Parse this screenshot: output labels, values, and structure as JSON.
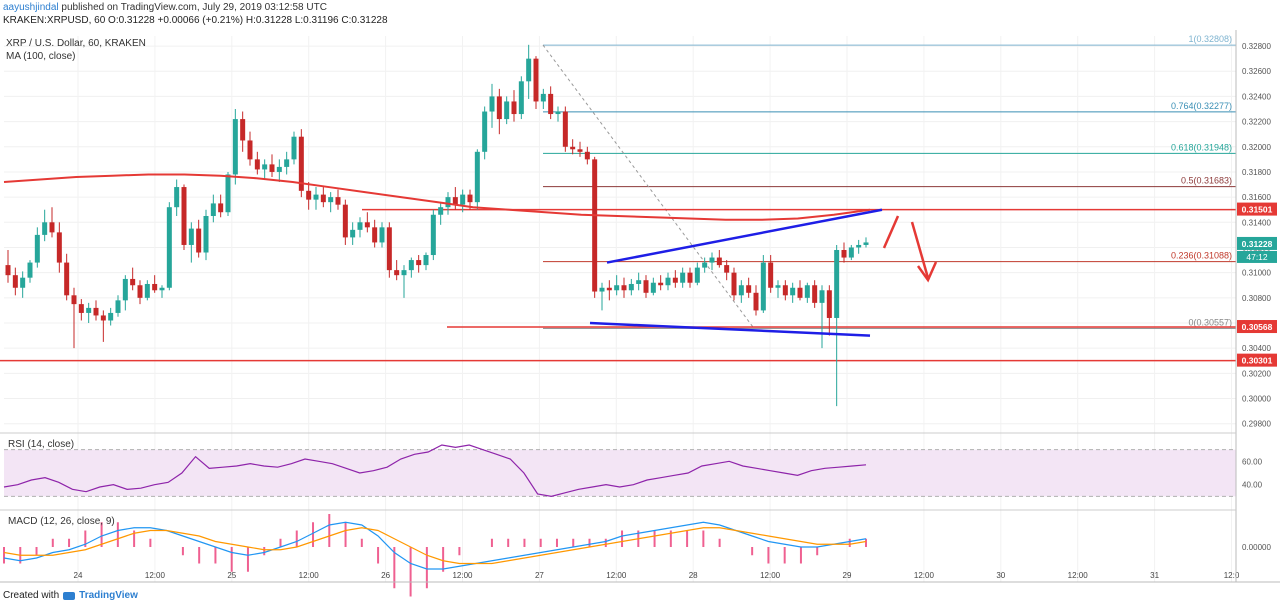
{
  "header": {
    "author": "aayushjindal",
    "published_text": "published on TradingView.com, July 29, 2019 03:12:58 UTC",
    "ohlc_line": "KRAKEN:XRPUSD, 60  O:0.31228  +0.00066 (+0.21%)  H:0.31228  L:0.31196  C:0.31228"
  },
  "chart_data": {
    "type": "candlestick",
    "symbol_title": "XRP / U.S. Dollar, 60, KRAKEN",
    "ma_label": "MA (100, close)",
    "rsi_label": "RSI (14, close)",
    "macd_label": "MACD (12, 26, close, 9)",
    "price_axis": {
      "ylim": [
        0.2975,
        0.3288
      ],
      "ticks": [
        "0.32800",
        "0.32600",
        "0.32400",
        "0.32200",
        "0.32000",
        "0.31800",
        "0.31600",
        "0.31400",
        "0.31200",
        "0.31000",
        "0.30800",
        "0.30600",
        "0.30400",
        "0.30200",
        "0.30000",
        "0.29800"
      ]
    },
    "time_axis": [
      "24",
      "12:00",
      "25",
      "12:00",
      "26",
      "12:00",
      "27",
      "12:00",
      "28",
      "12:00",
      "29",
      "12:00",
      "30",
      "12:00",
      "31",
      "12:0"
    ],
    "price_labels": [
      {
        "value": 0.31501,
        "text": "0.31501",
        "color": "#e53935"
      },
      {
        "value": 0.31228,
        "text": "0.31228",
        "color": "#26a69a"
      },
      {
        "value": 0.30568,
        "text": "0.30568",
        "color": "#e53935"
      },
      {
        "value": 0.30301,
        "text": "0.30301",
        "color": "#e53935"
      }
    ],
    "countdown": "47:12",
    "fib_levels": [
      {
        "ratio": "1",
        "value": 0.32808,
        "text": "1(0.32808)",
        "color": "#7fb4d0"
      },
      {
        "ratio": "0.764",
        "value": 0.32277,
        "text": "0.764(0.32277)",
        "color": "#3a8fb5"
      },
      {
        "ratio": "0.618",
        "value": 0.31948,
        "text": "0.618(0.31948)",
        "color": "#26a69a"
      },
      {
        "ratio": "0.5",
        "value": 0.31683,
        "text": "0.5(0.31683)",
        "color": "#8d3a3a"
      },
      {
        "ratio": "0.236",
        "value": 0.31088,
        "text": "0.236(0.31088)",
        "color": "#c0392b"
      },
      {
        "ratio": "0",
        "value": 0.30557,
        "text": "0(0.30557)",
        "color": "#888888"
      }
    ],
    "horizontal_levels": [
      0.31501,
      0.30568,
      0.30301
    ],
    "trendlines": {
      "upper": [
        [
          0.3108,
          0.315
        ]
      ],
      "lower": [
        [
          0.306,
          0.305
        ]
      ]
    },
    "candles": [
      [
        0.3106,
        0.3118,
        0.3092,
        0.3098
      ],
      [
        0.3098,
        0.3104,
        0.3082,
        0.3088
      ],
      [
        0.3088,
        0.3101,
        0.308,
        0.3096
      ],
      [
        0.3096,
        0.311,
        0.3092,
        0.3108
      ],
      [
        0.3108,
        0.3136,
        0.3104,
        0.313
      ],
      [
        0.313,
        0.315,
        0.3125,
        0.314
      ],
      [
        0.314,
        0.3152,
        0.3128,
        0.3132
      ],
      [
        0.3132,
        0.314,
        0.31,
        0.3108
      ],
      [
        0.3108,
        0.3115,
        0.3078,
        0.3082
      ],
      [
        0.3082,
        0.3088,
        0.304,
        0.3075
      ],
      [
        0.3075,
        0.3079,
        0.3062,
        0.3068
      ],
      [
        0.3068,
        0.3076,
        0.306,
        0.3072
      ],
      [
        0.3072,
        0.3078,
        0.3062,
        0.3066
      ],
      [
        0.3066,
        0.307,
        0.3045,
        0.3062
      ],
      [
        0.3062,
        0.3072,
        0.3058,
        0.3068
      ],
      [
        0.3068,
        0.3082,
        0.3065,
        0.3078
      ],
      [
        0.3078,
        0.3098,
        0.307,
        0.3095
      ],
      [
        0.3095,
        0.3104,
        0.3086,
        0.309
      ],
      [
        0.309,
        0.3094,
        0.3075,
        0.308
      ],
      [
        0.308,
        0.3094,
        0.3078,
        0.3091
      ],
      [
        0.3091,
        0.3098,
        0.3084,
        0.3086
      ],
      [
        0.3086,
        0.309,
        0.308,
        0.3088
      ],
      [
        0.3088,
        0.3156,
        0.3086,
        0.3152
      ],
      [
        0.3152,
        0.3174,
        0.3145,
        0.3168
      ],
      [
        0.3168,
        0.317,
        0.3118,
        0.3122
      ],
      [
        0.3122,
        0.314,
        0.3108,
        0.3135
      ],
      [
        0.3135,
        0.3142,
        0.3112,
        0.3116
      ],
      [
        0.3116,
        0.315,
        0.311,
        0.3145
      ],
      [
        0.3145,
        0.3162,
        0.314,
        0.3155
      ],
      [
        0.3155,
        0.3162,
        0.3144,
        0.3148
      ],
      [
        0.3148,
        0.318,
        0.3145,
        0.3178
      ],
      [
        0.3178,
        0.323,
        0.317,
        0.3222
      ],
      [
        0.3222,
        0.3228,
        0.3196,
        0.3205
      ],
      [
        0.3205,
        0.3212,
        0.3185,
        0.319
      ],
      [
        0.319,
        0.3196,
        0.3178,
        0.3182
      ],
      [
        0.3182,
        0.319,
        0.3174,
        0.3186
      ],
      [
        0.3186,
        0.3194,
        0.3176,
        0.318
      ],
      [
        0.318,
        0.319,
        0.3172,
        0.3184
      ],
      [
        0.3184,
        0.3196,
        0.3178,
        0.319
      ],
      [
        0.319,
        0.3212,
        0.3186,
        0.3208
      ],
      [
        0.3208,
        0.3214,
        0.316,
        0.3165
      ],
      [
        0.3165,
        0.3172,
        0.315,
        0.3158
      ],
      [
        0.3158,
        0.3168,
        0.315,
        0.3162
      ],
      [
        0.3162,
        0.3168,
        0.3152,
        0.3156
      ],
      [
        0.3156,
        0.3164,
        0.3148,
        0.316
      ],
      [
        0.316,
        0.3166,
        0.315,
        0.3154
      ],
      [
        0.3154,
        0.3158,
        0.3122,
        0.3128
      ],
      [
        0.3128,
        0.314,
        0.3122,
        0.3134
      ],
      [
        0.3134,
        0.3144,
        0.3128,
        0.314
      ],
      [
        0.314,
        0.3148,
        0.3132,
        0.3136
      ],
      [
        0.3136,
        0.3142,
        0.312,
        0.3124
      ],
      [
        0.3124,
        0.314,
        0.312,
        0.3136
      ],
      [
        0.3136,
        0.314,
        0.3096,
        0.3102
      ],
      [
        0.3102,
        0.311,
        0.3094,
        0.3098
      ],
      [
        0.3098,
        0.3106,
        0.308,
        0.3102
      ],
      [
        0.3102,
        0.3112,
        0.3096,
        0.311
      ],
      [
        0.311,
        0.3114,
        0.31,
        0.3106
      ],
      [
        0.3106,
        0.3116,
        0.3102,
        0.3114
      ],
      [
        0.3114,
        0.315,
        0.311,
        0.3146
      ],
      [
        0.3146,
        0.3156,
        0.3138,
        0.3152
      ],
      [
        0.3152,
        0.3164,
        0.3146,
        0.316
      ],
      [
        0.316,
        0.3168,
        0.315,
        0.3154
      ],
      [
        0.3154,
        0.3166,
        0.3148,
        0.3162
      ],
      [
        0.3162,
        0.3166,
        0.315,
        0.3156
      ],
      [
        0.3156,
        0.3198,
        0.315,
        0.3196
      ],
      [
        0.3196,
        0.3232,
        0.319,
        0.3228
      ],
      [
        0.3228,
        0.325,
        0.3215,
        0.324
      ],
      [
        0.324,
        0.3246,
        0.321,
        0.3222
      ],
      [
        0.3222,
        0.324,
        0.3218,
        0.3236
      ],
      [
        0.3236,
        0.3245,
        0.322,
        0.3226
      ],
      [
        0.3226,
        0.3256,
        0.3222,
        0.3252
      ],
      [
        0.3252,
        0.3281,
        0.3238,
        0.327
      ],
      [
        0.327,
        0.3272,
        0.323,
        0.3236
      ],
      [
        0.3236,
        0.3246,
        0.323,
        0.3242
      ],
      [
        0.3242,
        0.3248,
        0.3222,
        0.3226
      ],
      [
        0.3226,
        0.3232,
        0.322,
        0.3228
      ],
      [
        0.3228,
        0.3232,
        0.3196,
        0.32
      ],
      [
        0.32,
        0.3206,
        0.3194,
        0.3198
      ],
      [
        0.3198,
        0.3204,
        0.3192,
        0.3196
      ],
      [
        0.3196,
        0.32,
        0.3186,
        0.319
      ],
      [
        0.319,
        0.3192,
        0.308,
        0.3085
      ],
      [
        0.3085,
        0.3092,
        0.307,
        0.3088
      ],
      [
        0.3088,
        0.3094,
        0.3078,
        0.3086
      ],
      [
        0.3086,
        0.3098,
        0.3082,
        0.309
      ],
      [
        0.309,
        0.3096,
        0.308,
        0.3086
      ],
      [
        0.3086,
        0.3095,
        0.3082,
        0.3091
      ],
      [
        0.3091,
        0.31,
        0.3086,
        0.3094
      ],
      [
        0.3094,
        0.3098,
        0.308,
        0.3084
      ],
      [
        0.3084,
        0.3096,
        0.3082,
        0.3092
      ],
      [
        0.3092,
        0.3098,
        0.3086,
        0.309
      ],
      [
        0.309,
        0.31,
        0.3086,
        0.3096
      ],
      [
        0.3096,
        0.3102,
        0.3088,
        0.3092
      ],
      [
        0.3092,
        0.3104,
        0.3088,
        0.31
      ],
      [
        0.31,
        0.3104,
        0.3088,
        0.3092
      ],
      [
        0.3092,
        0.3108,
        0.309,
        0.3104
      ],
      [
        0.3104,
        0.3112,
        0.31,
        0.3108
      ],
      [
        0.3108,
        0.3116,
        0.3102,
        0.3112
      ],
      [
        0.3112,
        0.3118,
        0.3104,
        0.3106
      ],
      [
        0.3106,
        0.311,
        0.3094,
        0.31
      ],
      [
        0.31,
        0.3104,
        0.3078,
        0.3082
      ],
      [
        0.3082,
        0.3094,
        0.3076,
        0.309
      ],
      [
        0.309,
        0.3096,
        0.308,
        0.3084
      ],
      [
        0.3084,
        0.309,
        0.3066,
        0.307
      ],
      [
        0.307,
        0.3114,
        0.3068,
        0.3108
      ],
      [
        0.3108,
        0.3114,
        0.3084,
        0.3088
      ],
      [
        0.3088,
        0.3094,
        0.308,
        0.309
      ],
      [
        0.309,
        0.3094,
        0.3078,
        0.3082
      ],
      [
        0.3082,
        0.3092,
        0.3076,
        0.3088
      ],
      [
        0.3088,
        0.3094,
        0.3078,
        0.308
      ],
      [
        0.308,
        0.3092,
        0.3076,
        0.309
      ],
      [
        0.309,
        0.3094,
        0.3072,
        0.3076
      ],
      [
        0.3076,
        0.309,
        0.304,
        0.3086
      ],
      [
        0.3086,
        0.309,
        0.305,
        0.3064
      ],
      [
        0.3064,
        0.3122,
        0.2994,
        0.3118
      ],
      [
        0.3118,
        0.3124,
        0.3108,
        0.3112
      ],
      [
        0.3112,
        0.3122,
        0.311,
        0.312
      ],
      [
        0.312,
        0.3126,
        0.3115,
        0.3122
      ],
      [
        0.3122,
        0.3128,
        0.312,
        0.3124
      ]
    ],
    "ma": [
      0.3172,
      0.3174,
      0.3176,
      0.3177,
      0.3178,
      0.3178,
      0.3177,
      0.3175,
      0.3172,
      0.3168,
      0.3164,
      0.316,
      0.3156,
      0.3152,
      0.315,
      0.3148,
      0.3146,
      0.3145,
      0.3144,
      0.3143,
      0.3142,
      0.3142,
      0.3143,
      0.3146,
      0.315
    ],
    "rsi": {
      "ylim": [
        20,
        80
      ],
      "levels": [
        30,
        70
      ],
      "ticks": [
        "60.00",
        "40.00"
      ],
      "values": [
        38,
        40,
        44,
        46,
        42,
        36,
        34,
        38,
        40,
        36,
        37,
        40,
        42,
        50,
        64,
        54,
        55,
        56,
        58,
        56,
        55,
        58,
        62,
        60,
        58,
        54,
        50,
        52,
        55,
        62,
        66,
        68,
        74,
        72,
        74,
        70,
        66,
        62,
        50,
        32,
        30,
        33,
        36,
        38,
        40,
        38,
        40,
        44,
        46,
        48,
        50,
        56,
        58,
        60,
        56,
        54,
        52,
        50,
        48,
        52,
        54,
        55,
        56,
        57
      ]
    },
    "macd": {
      "ylim": [
        -0.0012,
        0.0012
      ],
      "ticks": [
        "0.00000"
      ],
      "macd": [
        -0.0004,
        -0.0005,
        -0.0004,
        -0.0002,
        -0.0001,
        0.0001,
        0.0004,
        0.0006,
        0.0007,
        0.0007,
        0.0006,
        0.0004,
        0.0002,
        0.0,
        -0.0002,
        -0.0003,
        -0.0002,
        0.0,
        0.0002,
        0.0005,
        0.0008,
        0.0009,
        0.0008,
        0.0004,
        -0.0002,
        -0.0006,
        -0.0008,
        -0.0008,
        -0.0007,
        -0.0006,
        -0.0005,
        -0.0004,
        -0.0003,
        -0.0002,
        -0.0001,
        0.0,
        0.0001,
        0.0002,
        0.0004,
        0.0005,
        0.0006,
        0.0007,
        0.0008,
        0.0009,
        0.0008,
        0.0006,
        0.0004,
        0.0002,
        0.0001,
        0.0,
        0.0,
        0.0001,
        0.0002,
        0.0003
      ],
      "signal": [
        -0.0002,
        -0.0003,
        -0.0003,
        -0.0003,
        -0.0002,
        -0.0001,
        0.0001,
        0.0003,
        0.0005,
        0.0006,
        0.0006,
        0.0005,
        0.0004,
        0.0002,
        0.0001,
        0.0,
        -0.0001,
        -0.0001,
        0.0,
        0.0002,
        0.0004,
        0.0006,
        0.0007,
        0.0006,
        0.0003,
        0.0,
        -0.0003,
        -0.0005,
        -0.0006,
        -0.0006,
        -0.0006,
        -0.0005,
        -0.0004,
        -0.0003,
        -0.0002,
        -0.0001,
        0.0,
        0.0001,
        0.0002,
        0.0003,
        0.0004,
        0.0005,
        0.0006,
        0.0007,
        0.0007,
        0.0006,
        0.0005,
        0.0004,
        0.0003,
        0.0002,
        0.0001,
        0.0001,
        0.0001,
        0.0002
      ]
    }
  },
  "footer": {
    "created_with": "Created with",
    "brand": "TradingView"
  },
  "colors": {
    "up": "#26a69a",
    "down": "#c62828",
    "ma": "#e53935",
    "trendline": "#1e1ee6",
    "annotation": "#e53935",
    "rsi_fill": "#f3e5f5",
    "rsi_line": "#8e24aa",
    "macd_line": "#2196f3",
    "signal_line": "#ff9800",
    "hist": "#e91e63"
  }
}
